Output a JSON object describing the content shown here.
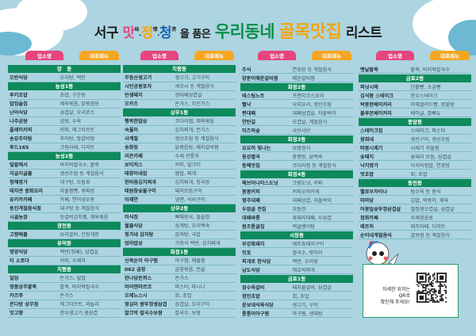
{
  "title": {
    "part1": "서구",
    "mat": "맛",
    "mat_hanja": "味",
    "jeong": "정",
    "jeong_hanja": "情",
    "cheong": "청",
    "cheong_hanja": "淸",
    "part2": "을 품은",
    "green": "우리동네",
    "gold": "골목맛집",
    "end": "리스트"
  },
  "colors": {
    "background": "#acd5e1",
    "section": "#0e8a5c",
    "name_pill": "#e6457f",
    "menu_pill": "#f5a622",
    "title_green": "#0a8f48",
    "title_gold": "#f3a312",
    "mat": "#e6457f",
    "jeong": "#f3a312",
    "cheong": "#1a5fb0"
  },
  "headers": {
    "name": "업소명",
    "menu": "대표메뉴"
  },
  "columns": [
    [
      {
        "section": "양　동"
      },
      [
        "오반식당",
        "오리탕, 백반"
      ],
      {
        "section": "농성1동"
      },
      [
        "루키초밥",
        "초밥, 구운동"
      ],
      [
        "밥집솔집",
        "제육볶음, 닭볶음탕"
      ],
      [
        "난아식당",
        "삼겹살, 오리로스"
      ],
      [
        "나주곰탕",
        "곰탕, 수육"
      ],
      [
        "플레이커피",
        "커피, 에그타르트"
      ],
      [
        "송강추어탕",
        "추어탕, 왕갈비탕"
      ],
      [
        "루드165",
        "크림라떼, 디저트"
      ],
      {
        "section": "농성2동"
      },
      [
        "밀밭에서",
        "바지락칼국수, 팥죽"
      ],
      [
        "지글지글불",
        "생선조림 등 계절음식"
      ],
      [
        "청해명가",
        "대구탕, 모둠회"
      ],
      [
        "태자관 중화요리",
        "차돌짬뽕, 볶짜장"
      ],
      [
        "유카카카페",
        "카페, 연어냉우동"
      ],
      [
        "동진계절음식점",
        "대구탕 등 계절음식"
      ],
      [
        "시골농장",
        "등갈비김치찜, 제육볶음"
      ],
      {
        "section": "광천동"
      },
      [
        "고향애볼",
        "보리굴비, 간장게장"
      ],
      {
        "section": "유덕동"
      },
      [
        "영양식당",
        "백반(뷔페), 삼겹살"
      ],
      [
        "티 소로다",
        "커피, 수제차"
      ],
      {
        "section": "치평동"
      },
      [
        "일담",
        "돈가스, 덮밥"
      ],
      [
        "명품상무팥죽",
        "팥죽, 바지락칼국수"
      ],
      [
        "카츠쭈",
        "돈가스"
      ],
      [
        "온다방 상무점",
        "에그타르트, 꽈놀리"
      ],
      [
        "맛고향",
        "한우생고기,생삼겹"
      ]
    ],
    [
      {
        "section": "치평동"
      },
      [
        "무등산생고기",
        "생고기, 고기구이"
      ],
      [
        "시민공원포차",
        "세꼬시 등 계절음식"
      ],
      [
        "인생돼지",
        "생대패삼겹살"
      ],
      [
        "오카츠",
        "돈가스, 치킨가스"
      ],
      {
        "section": "상무1동"
      },
      [
        "행복한밥상",
        "코다리찜, 제육볶음"
      ],
      [
        "속풀이",
        "김치찌개, 돈가스"
      ],
      [
        "사계절",
        "생선조림 등 계절음식"
      ],
      [
        "송화정",
        "닭볶음탕, 돼지갈비찜"
      ],
      [
        "리즌카페",
        "수제 전통차"
      ],
      [
        "보이저스",
        "커피, 밀크티"
      ],
      [
        "태양이네집",
        "쌈밥, 찌개"
      ],
      [
        "한마음김치찌개",
        "김치찌개, 청국장"
      ],
      [
        "태원참숯불구이",
        "돼지모듬구이"
      ],
      [
        "미래연",
        "냉면, 석쇠구이"
      ],
      {
        "section": "상무2동"
      },
      [
        "미식정",
        "뼈해장국, 돌솥밥"
      ],
      [
        "월출식당",
        "삼계탕, 오리백숙"
      ],
      [
        "청가네 감자탕",
        "감자탕, 국밥"
      ],
      [
        "엄마밥상",
        "가정식 백반, 김치찌개"
      ],
      {
        "section": "화정1동"
      },
      [
        "신목순이 아구찜",
        "아구찜, 해물찜"
      ],
      [
        "062 곱창",
        "곱창볶음, 전골"
      ],
      [
        "한나당돈까스",
        "돈가스"
      ],
      [
        "마리엔마르코",
        "파스타, 파니니"
      ],
      [
        "오레노스시",
        "회, 초밥"
      ],
      [
        "영심이 왕뚜껑생삼겹",
        "삼겹살, 오리구이"
      ],
      [
        "깔끄막 칼국수보쌈",
        "칼국수, 보쌈"
      ]
    ],
    [
      [
        "주식",
        "연포탕 등 계절음식"
      ],
      [
        "양푼이매운갈비찜",
        "매운갈비찜"
      ],
      {
        "section": "화정2동"
      },
      [
        "테스팅노트",
        "프렌치코스요리"
      ],
      [
        "뻘낙",
        "낙지요리, 생선조림"
      ],
      [
        "편대패",
        "대패삼겹살, 차돌박이"
      ],
      [
        "연탄길",
        "오겹살, 계절음식"
      ],
      [
        "미즈의숲",
        "샤브샤브"
      ],
      {
        "section": "화정3동"
      },
      [
        "요요히 빛나는",
        "보쌈정식"
      ],
      [
        "용강별곡",
        "용봉탕, 닭백숙"
      ],
      [
        "동해맛집",
        "코다리찜 등 계절음식"
      ],
      {
        "section": "화정4동"
      },
      [
        "해브어나이스도넛",
        "크림도넛, 커피"
      ],
      [
        "봉봉커피",
        "커피오마카세"
      ],
      [
        "영주대패",
        "대패삼겹, 차돌박이"
      ],
      [
        "두암골 전집",
        "모듬전"
      ],
      [
        "대패싸롱",
        "흑돼지대패, 우삼겹"
      ],
      [
        "원조통골집",
        "백골뱅이탕"
      ],
      {
        "section": "서창동"
      },
      [
        "부강흑돼지",
        "제주흑돼지구이"
      ],
      [
        "잇포",
        "쌀국수, 팟타이"
      ],
      [
        "피개로 한식당",
        "백반, 오리탕"
      ],
      [
        "남도식당",
        "애호박찌개"
      ],
      {
        "section": "금호1동"
      },
      [
        "장수옥갈비",
        "돼지물갈비, 삼겹살"
      ],
      [
        "정인초밥",
        "회, 초밥"
      ],
      [
        "윤보네식육식당",
        "생고기, 구이"
      ],
      [
        "통통이아구찜",
        "아구찜, 생태탕"
      ]
    ],
    [
      [
        "옛날팥죽",
        "팥죽, 바지락칼국수"
      ],
      {
        "section": "금호2동"
      },
      [
        "피넛시에",
        "단팥빵, 소금빵"
      ],
      [
        "김석봉 스테이크",
        "한우스테이크"
      ],
      [
        "박종현베이커리",
        "야채샐러드빵, 몽블랑"
      ],
      [
        "블루본베이커리",
        "베이글, 깜빠뉴"
      ],
      {
        "section": "풍암동"
      },
      [
        "스테이크집",
        "스테이크, 파스타"
      ],
      [
        "광희네",
        "생선구이, 생선조림"
      ],
      [
        "따봉시래기",
        "시래기 차돌찜"
      ],
      [
        "숯돼지",
        "숯돼지 모듬, 삼겹살"
      ],
      [
        "낙지명가",
        "낙지비빔밥, 연포탕"
      ],
      [
        "멋초밥",
        "회, 초밥"
      ],
      {
        "section": "동천동"
      },
      [
        "헬로우차이나",
        "탕수육 등 중식"
      ],
      [
        "마마당",
        "김밥, 떡볶이, 제육"
      ],
      [
        "어뭉일숯뚜껑삼겹살",
        "벌집생오겹살, 삼겹살"
      ],
      [
        "정화카페",
        "수제청음료"
      ],
      [
        "레프허",
        "레프라떼, 디저트"
      ],
      [
        "순이네계절음식",
        "굴보쌈 등 계절음식"
      ]
    ]
  ],
  "qr": {
    "line1": "자세한 위치는",
    "line2": "QR로",
    "line3": "확인해 주세요!"
  }
}
